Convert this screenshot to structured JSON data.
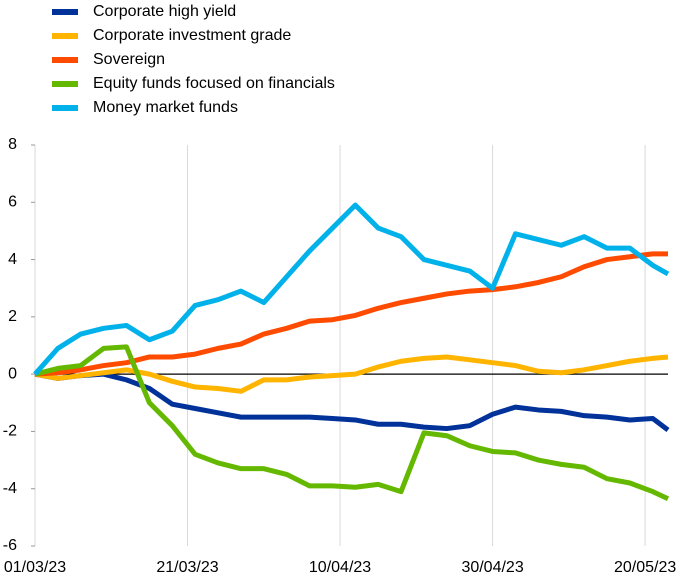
{
  "chart_data": {
    "type": "line",
    "x": [
      "01/03/23",
      "04/03/23",
      "07/03/23",
      "10/03/23",
      "13/03/23",
      "16/03/23",
      "19/03/23",
      "22/03/23",
      "25/03/23",
      "28/03/23",
      "31/03/23",
      "03/04/23",
      "06/04/23",
      "09/04/23",
      "12/04/23",
      "15/04/23",
      "18/04/23",
      "21/04/23",
      "24/04/23",
      "27/04/23",
      "30/04/23",
      "03/05/23",
      "06/05/23",
      "09/05/23",
      "12/05/23",
      "15/05/23",
      "18/05/23",
      "21/05/23",
      "23/05/23"
    ],
    "series": [
      {
        "name": "Corporate high yield",
        "color": "#003299",
        "values": [
          0,
          -0.15,
          -0.05,
          0,
          -0.2,
          -0.5,
          -1.05,
          -1.2,
          -1.35,
          -1.5,
          -1.5,
          -1.5,
          -1.5,
          -1.55,
          -1.6,
          -1.75,
          -1.75,
          -1.85,
          -1.9,
          -1.8,
          -1.4,
          -1.15,
          -1.25,
          -1.3,
          -1.45,
          -1.5,
          -1.6,
          -1.55,
          -1.95
        ]
      },
      {
        "name": "Corporate investment grade",
        "color": "#ffb400",
        "values": [
          0,
          -0.15,
          -0.05,
          0.05,
          0.15,
          0,
          -0.25,
          -0.45,
          -0.5,
          -0.6,
          -0.2,
          -0.2,
          -0.1,
          -0.05,
          0,
          0.25,
          0.45,
          0.55,
          0.6,
          0.5,
          0.4,
          0.3,
          0.1,
          0.05,
          0.15,
          0.3,
          0.45,
          0.55,
          0.6
        ]
      },
      {
        "name": "Sovereign",
        "color": "#ff4b00",
        "values": [
          0,
          0.05,
          0.15,
          0.3,
          0.4,
          0.6,
          0.6,
          0.7,
          0.9,
          1.05,
          1.4,
          1.6,
          1.85,
          1.9,
          2.05,
          2.3,
          2.5,
          2.65,
          2.8,
          2.9,
          2.95,
          3.05,
          3.2,
          3.4,
          3.75,
          4.0,
          4.1,
          4.2,
          4.2
        ]
      },
      {
        "name": "Equity funds focused on financials",
        "color": "#65b800",
        "values": [
          0,
          0.2,
          0.3,
          0.9,
          0.95,
          -1.0,
          -1.8,
          -2.8,
          -3.1,
          -3.3,
          -3.3,
          -3.5,
          -3.9,
          -3.9,
          -3.95,
          -3.85,
          -4.1,
          -2.05,
          -2.15,
          -2.5,
          -2.7,
          -2.75,
          -3.0,
          -3.15,
          -3.25,
          -3.65,
          -3.8,
          -4.1,
          -4.35
        ]
      },
      {
        "name": "Money market funds",
        "color": "#00b1ea",
        "values": [
          0,
          0.9,
          1.4,
          1.6,
          1.7,
          1.2,
          1.5,
          2.4,
          2.6,
          2.9,
          2.5,
          3.4,
          4.3,
          5.1,
          5.9,
          5.1,
          4.8,
          4.0,
          3.8,
          3.6,
          3.0,
          4.9,
          4.7,
          4.5,
          4.8,
          4.4,
          4.4,
          3.8,
          3.5
        ]
      }
    ],
    "xlim": [
      "01/03/23",
      "23/05/23"
    ],
    "xticks": [
      "01/03/23",
      "21/03/23",
      "10/04/23",
      "30/04/23",
      "20/05/23"
    ],
    "ylim": [
      -6,
      8
    ],
    "yticks": [
      -6,
      -4,
      -2,
      0,
      2,
      4,
      6,
      8
    ],
    "xgrid": true,
    "legend": "top-left"
  }
}
